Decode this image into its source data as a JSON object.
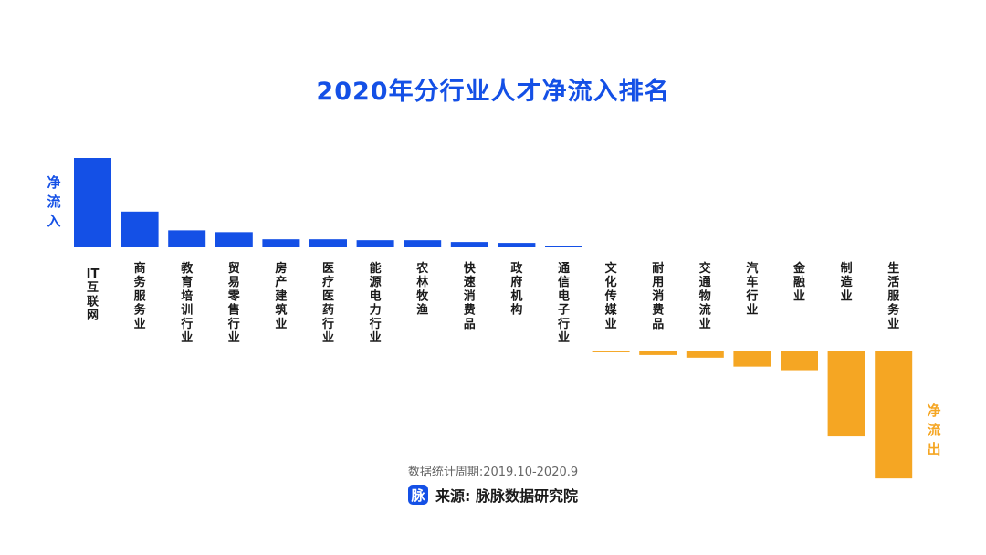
{
  "page": {
    "in_label": "净流入",
    "out_label": "净流出",
    "period": "数据统计周期:2019.10-2020.9",
    "source": "来源: 脉脉数据研究院",
    "logo_text": "脉"
  },
  "colors": {
    "inflow": "#1450e6",
    "outflow": "#f5a623",
    "title": "#1450e6"
  },
  "chart_data": {
    "type": "bar",
    "title": "2020年分行业人才净流入排名",
    "xlabel": "",
    "ylabel": "",
    "categories": [
      "IT互联网",
      "商务服务业",
      "教育培训行业",
      "贸易零售行业",
      "房产建筑业",
      "医疗医药行业",
      "能源电力行业",
      "农林牧渔",
      "快速消费品",
      "政府机构",
      "通信电子行业",
      "文化传媒业",
      "耐用消费品",
      "交通物流业",
      "汽车行业",
      "金融业",
      "制造业",
      "生活服务业"
    ],
    "values": [
      100,
      40,
      19,
      17,
      9,
      9,
      8,
      8,
      6,
      5,
      1,
      -2,
      -5,
      -8,
      -18,
      -22,
      -96,
      -143
    ],
    "ylim": [
      -150,
      100
    ],
    "grid": false,
    "legend": "none"
  }
}
